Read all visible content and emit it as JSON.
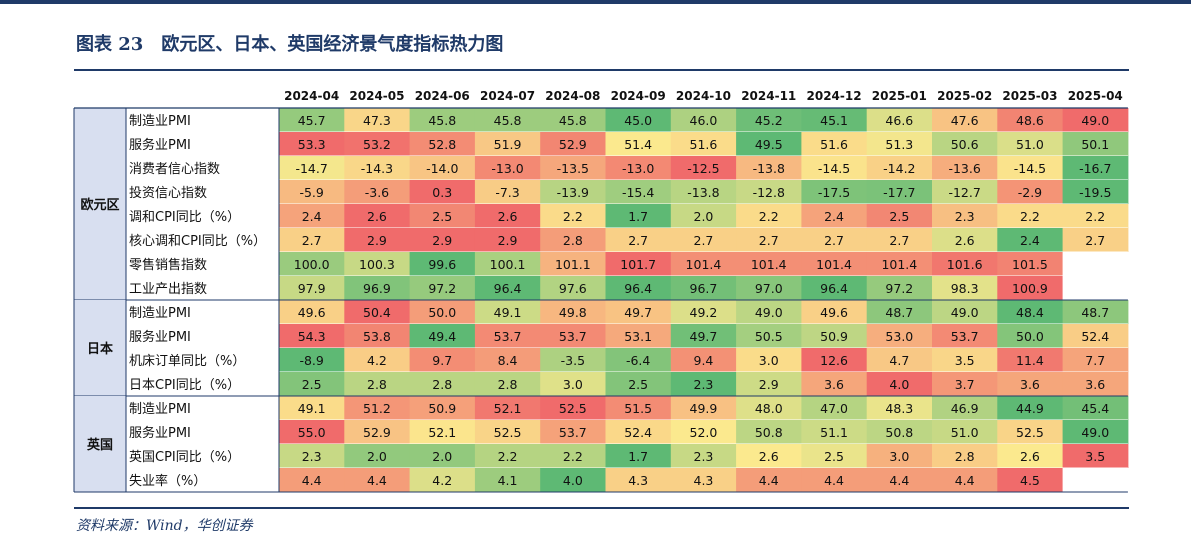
{
  "title": "图表 23　欧元区、日本、英国经济景气度指标热力图",
  "source": "资料来源：Wind，华创证券",
  "chart_data": {
    "type": "heatmap",
    "title": "图表 23　欧元区、日本、英国经济景气度指标热力图",
    "columns": [
      "2024-04",
      "2024-05",
      "2024-06",
      "2024-07",
      "2024-08",
      "2024-09",
      "2024-10",
      "2024-11",
      "2024-12",
      "2025-01",
      "2025-02",
      "2025-03",
      "2025-04"
    ],
    "colorscale": {
      "high": "#f06b6b",
      "mid": "#fbe98e",
      "low": "#5eb974",
      "blank": "#ffffff"
    },
    "groups": [
      {
        "region": "欧元区",
        "rows": [
          {
            "label": "制造业PMI",
            "values": [
              45.7,
              47.3,
              45.8,
              45.8,
              45.8,
              45.0,
              46.0,
              45.2,
              45.1,
              46.6,
              47.6,
              48.6,
              49.0
            ]
          },
          {
            "label": "服务业PMI",
            "values": [
              53.3,
              53.2,
              52.8,
              51.9,
              52.9,
              51.4,
              51.6,
              49.5,
              51.6,
              51.3,
              50.6,
              51.0,
              50.1
            ]
          },
          {
            "label": "消费者信心指数",
            "values": [
              -14.7,
              -14.3,
              -14.0,
              -13.0,
              -13.5,
              -13.0,
              -12.5,
              -13.8,
              -14.5,
              -14.2,
              -13.6,
              -14.5,
              -16.7
            ]
          },
          {
            "label": "投资信心指数",
            "values": [
              -5.9,
              -3.6,
              0.3,
              -7.3,
              -13.9,
              -15.4,
              -13.8,
              -12.8,
              -17.5,
              -17.7,
              -12.7,
              -2.9,
              -19.5
            ]
          },
          {
            "label": "调和CPI同比（%）",
            "values": [
              2.4,
              2.6,
              2.5,
              2.6,
              2.2,
              1.7,
              2.0,
              2.2,
              2.4,
              2.5,
              2.3,
              2.2,
              2.2
            ]
          },
          {
            "label": "核心调和CPI同比（%）",
            "values": [
              2.7,
              2.9,
              2.9,
              2.9,
              2.8,
              2.7,
              2.7,
              2.7,
              2.7,
              2.7,
              2.6,
              2.4,
              2.7
            ]
          },
          {
            "label": "零售销售指数",
            "values": [
              100.0,
              100.3,
              99.6,
              100.1,
              101.1,
              101.7,
              101.4,
              101.4,
              101.4,
              101.4,
              101.6,
              101.5,
              null
            ]
          },
          {
            "label": "工业产出指数",
            "values": [
              97.9,
              96.9,
              97.2,
              96.4,
              97.6,
              96.4,
              96.7,
              97.0,
              96.4,
              97.2,
              98.3,
              100.9,
              null
            ]
          }
        ]
      },
      {
        "region": "日本",
        "rows": [
          {
            "label": "制造业PMI",
            "values": [
              49.6,
              50.4,
              50.0,
              49.1,
              49.8,
              49.7,
              49.2,
              49.0,
              49.6,
              48.7,
              49.0,
              48.4,
              48.7
            ]
          },
          {
            "label": "服务业PMI",
            "values": [
              54.3,
              53.8,
              49.4,
              53.7,
              53.7,
              53.1,
              49.7,
              50.5,
              50.9,
              53.0,
              53.7,
              50.0,
              52.4
            ]
          },
          {
            "label": "机床订单同比（%）",
            "values": [
              -8.9,
              4.2,
              9.7,
              8.4,
              -3.5,
              -6.4,
              9.4,
              3.0,
              12.6,
              4.7,
              3.5,
              11.4,
              7.7
            ]
          },
          {
            "label": "日本CPI同比（%）",
            "values": [
              2.5,
              2.8,
              2.8,
              2.8,
              3.0,
              2.5,
              2.3,
              2.9,
              3.6,
              4.0,
              3.7,
              3.6,
              3.6
            ]
          }
        ]
      },
      {
        "region": "英国",
        "rows": [
          {
            "label": "制造业PMI",
            "values": [
              49.1,
              51.2,
              50.9,
              52.1,
              52.5,
              51.5,
              49.9,
              48.0,
              47.0,
              48.3,
              46.9,
              44.9,
              45.4
            ]
          },
          {
            "label": "服务业PMI",
            "values": [
              55.0,
              52.9,
              52.1,
              52.5,
              53.7,
              52.4,
              52.0,
              50.8,
              51.1,
              50.8,
              51.0,
              52.5,
              49.0
            ]
          },
          {
            "label": "英国CPI同比（%）",
            "values": [
              2.3,
              2.0,
              2.0,
              2.2,
              2.2,
              1.7,
              2.3,
              2.6,
              2.5,
              3.0,
              2.8,
              2.6,
              3.5
            ]
          },
          {
            "label": "失业率（%）",
            "values": [
              4.4,
              4.4,
              4.2,
              4.1,
              4.0,
              4.3,
              4.3,
              4.4,
              4.4,
              4.4,
              4.4,
              4.5,
              null
            ]
          }
        ]
      }
    ]
  }
}
